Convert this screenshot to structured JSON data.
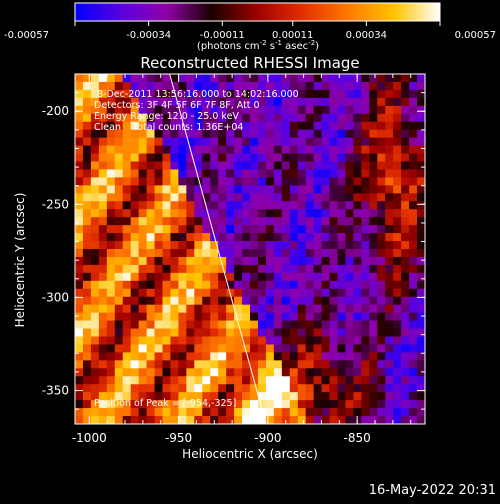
{
  "colorbar": {
    "ticks": [
      "-0.00057",
      "-0.00034",
      "-0.00011",
      "0.00011",
      "0.00034",
      "0.00057"
    ],
    "tick_values": [
      -0.00057,
      -0.00034,
      -0.00011,
      0.00011,
      0.00034,
      0.00057
    ],
    "range": [
      -0.00057,
      0.00057
    ],
    "unit_prefix": "(photons cm",
    "unit_exp1": "-2",
    "unit_mid1": " s",
    "unit_exp2": "-1",
    "unit_mid2": " asec",
    "unit_exp3": "-2",
    "unit_suffix": ")",
    "colors": [
      "#0000ff",
      "#5a00e0",
      "#8f00a8",
      "#1a0000",
      "#a00000",
      "#e43000",
      "#ff7a00",
      "#ffc400",
      "#ffffff"
    ]
  },
  "annotations": {
    "line1": "8-Dec-2011 13:56:16.000 to 14:02:16.000",
    "line2": "Detectors: 3F 4F 5F 6F 7F 8F, Att 0",
    "line3": "Energy Range: 12.0 - 25.0 keV",
    "line4": "Clean    Total counts: 1.36E+04",
    "peak_prefix": "Position of Peak = ",
    "peak_value": "[-954,-325]"
  },
  "footer": {
    "timestamp": "16-May-2022 20:31"
  },
  "chart_data": {
    "type": "heatmap",
    "title": "Reconstructed RHESSI Image",
    "xlabel": "Heliocentric X (arcsec)",
    "ylabel": "Heliocentric Y (arcsec)",
    "xlim": [
      -1008,
      -812
    ],
    "ylim": [
      -368,
      -180
    ],
    "x_ticks": [
      -1000,
      -950,
      -900,
      -850
    ],
    "x_tick_labels": [
      "-1000",
      "-950",
      "-900",
      "-850"
    ],
    "y_ticks": [
      -200,
      -250,
      -300,
      -350
    ],
    "y_tick_labels": [
      "-200",
      "-250",
      "-300",
      "-350"
    ],
    "value_range": [
      -0.00057,
      0.00057
    ],
    "limb_line": {
      "x": [
        -955,
        -901
      ],
      "y": [
        -180,
        -368
      ]
    },
    "peak": {
      "x": -954,
      "y": -325
    }
  }
}
